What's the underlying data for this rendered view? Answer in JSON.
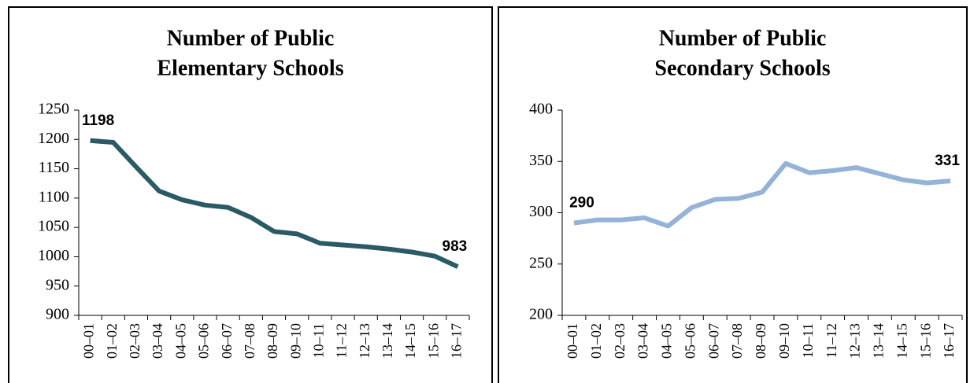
{
  "chart_data": [
    {
      "type": "line",
      "title": [
        "Number of Public",
        "Elementary Schools"
      ],
      "categories": [
        "00–01",
        "01–02",
        "02–03",
        "03–04",
        "04–05",
        "05–06",
        "06–07",
        "07–08",
        "08–09",
        "09–10",
        "10–11",
        "11–12",
        "12–13",
        "13–14",
        "14–15",
        "15–16",
        "16–17"
      ],
      "series": [
        {
          "name": "Elementary Schools",
          "color": "#2a5a65",
          "values": [
            1198,
            1195,
            1153,
            1112,
            1097,
            1088,
            1084,
            1067,
            1043,
            1039,
            1023,
            1020,
            1017,
            1013,
            1008,
            1001,
            983
          ]
        }
      ],
      "ylim": [
        900,
        1250
      ],
      "yticks": [
        900,
        950,
        1000,
        1050,
        1100,
        1150,
        1200,
        1250
      ],
      "labeled_points": [
        0,
        16
      ]
    },
    {
      "type": "line",
      "title": [
        "Number of Public",
        "Secondary Schools"
      ],
      "categories": [
        "00–01",
        "01–02",
        "02–03",
        "03–04",
        "04–05",
        "05–06",
        "06–07",
        "07–08",
        "08–09",
        "09–10",
        "10–11",
        "11–12",
        "12–13",
        "13–14",
        "14–15",
        "15–16",
        "16–17"
      ],
      "series": [
        {
          "name": "Secondary Schools",
          "color": "#95b3d7",
          "values": [
            290,
            293,
            293,
            295,
            287,
            305,
            313,
            314,
            320,
            348,
            339,
            341,
            344,
            338,
            332,
            329,
            331
          ]
        }
      ],
      "ylim": [
        200,
        400
      ],
      "yticks": [
        200,
        250,
        300,
        350,
        400
      ],
      "labeled_points": [
        0,
        16
      ]
    }
  ]
}
